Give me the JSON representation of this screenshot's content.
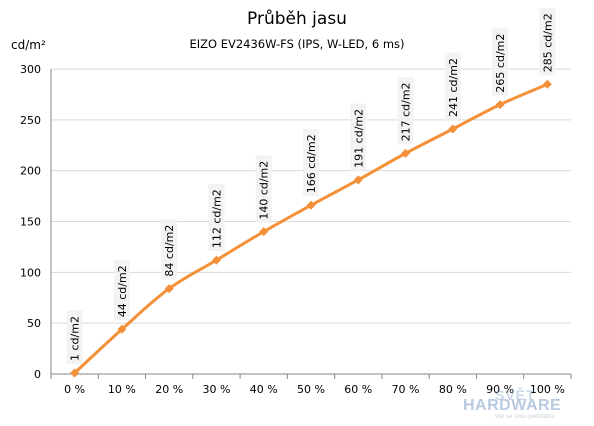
{
  "chart_data": {
    "type": "line",
    "title": "Průběh jasu",
    "subtitle": "EIZO EV2436W-FS (IPS, W-LED, 6 ms)",
    "ylabel": "cd/m²",
    "xlabel": "",
    "categories": [
      "0 %",
      "10 %",
      "20 %",
      "30 %",
      "40 %",
      "50 %",
      "60 %",
      "70 %",
      "80 %",
      "90 %",
      "100 %"
    ],
    "values": [
      1,
      44,
      84,
      112,
      140,
      166,
      191,
      217,
      241,
      265,
      285
    ],
    "data_labels": [
      "1 cd/m2",
      "44 cd/m2",
      "84 cd/m2",
      "112 cd/m2",
      "140 cd/m2",
      "166 cd/m2",
      "191 cd/m2",
      "217 cd/m2",
      "241 cd/m2",
      "265 cd/m2",
      "285 cd/m2"
    ],
    "ylim": [
      0,
      300
    ],
    "yticks": [
      0,
      50,
      100,
      150,
      200,
      250,
      300
    ],
    "grid": "horizontal",
    "legend": "none",
    "series_color": "#f39038",
    "marker": "diamond"
  },
  "watermark": {
    "top": "SVĚT",
    "main": "HARDWARE",
    "sub": "vše se svou podstatou"
  }
}
